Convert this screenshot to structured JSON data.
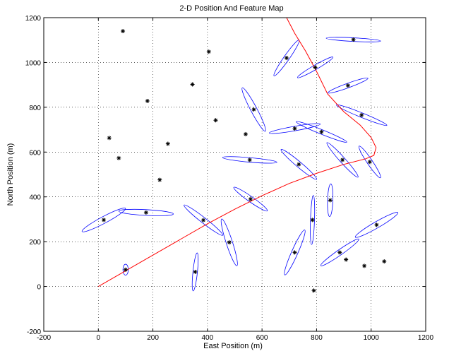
{
  "chart_data": {
    "type": "scatter",
    "title": "2-D Position And Feature Map",
    "xlabel": "East Position (m)",
    "ylabel": "North Position (m)",
    "xlim": [
      -200,
      1200
    ],
    "ylim": [
      -200,
      1200
    ],
    "xticks": [
      -200,
      0,
      200,
      400,
      600,
      800,
      1000,
      1200
    ],
    "yticks": [
      -200,
      0,
      200,
      400,
      600,
      800,
      1000,
      1200
    ],
    "xtick_labels": [
      "-200",
      "0",
      "200",
      "400",
      "600",
      "800",
      "1000",
      "1200"
    ],
    "ytick_labels": [
      "-200",
      "0",
      "200",
      "400",
      "600",
      "800",
      "1000",
      "1200"
    ],
    "grid": true,
    "colors": {
      "trajectory": "#ff0000",
      "ellipse": "#0000ff",
      "feature": "#000000",
      "axes": "#000000",
      "grid": "#000000"
    },
    "trajectory": [
      [
        0,
        0
      ],
      [
        100,
        70
      ],
      [
        200,
        140
      ],
      [
        300,
        210
      ],
      [
        400,
        280
      ],
      [
        500,
        345
      ],
      [
        600,
        405
      ],
      [
        700,
        460
      ],
      [
        800,
        505
      ],
      [
        900,
        545
      ],
      [
        980,
        570
      ],
      [
        1010,
        585
      ],
      [
        1018,
        620
      ],
      [
        1000,
        665
      ],
      [
        960,
        720
      ],
      [
        900,
        780
      ],
      [
        840,
        860
      ],
      [
        800,
        960
      ],
      [
        760,
        1050
      ],
      [
        720,
        1130
      ],
      [
        690,
        1200
      ]
    ],
    "features": [
      {
        "x": 90,
        "y": 1140
      },
      {
        "x": 405,
        "y": 1048
      },
      {
        "x": 345,
        "y": 902
      },
      {
        "x": 180,
        "y": 828
      },
      {
        "x": 430,
        "y": 742
      },
      {
        "x": 40,
        "y": 663
      },
      {
        "x": 540,
        "y": 680
      },
      {
        "x": 255,
        "y": 637
      },
      {
        "x": 75,
        "y": 573
      },
      {
        "x": 225,
        "y": 476
      },
      {
        "x": 908,
        "y": 120
      },
      {
        "x": 975,
        "y": 92
      },
      {
        "x": 1048,
        "y": 112
      },
      {
        "x": 790,
        "y": -18
      },
      {
        "x": 935,
        "y": 1102
      },
      {
        "x": 690,
        "y": 1020
      },
      {
        "x": 795,
        "y": 978
      },
      {
        "x": 915,
        "y": 897
      },
      {
        "x": 570,
        "y": 790
      },
      {
        "x": 965,
        "y": 765
      },
      {
        "x": 720,
        "y": 705
      },
      {
        "x": 818,
        "y": 690
      },
      {
        "x": 555,
        "y": 565
      },
      {
        "x": 735,
        "y": 545
      },
      {
        "x": 895,
        "y": 565
      },
      {
        "x": 995,
        "y": 556
      },
      {
        "x": 558,
        "y": 390
      },
      {
        "x": 850,
        "y": 385
      },
      {
        "x": 175,
        "y": 330
      },
      {
        "x": 20,
        "y": 297
      },
      {
        "x": 385,
        "y": 296
      },
      {
        "x": 785,
        "y": 297
      },
      {
        "x": 1020,
        "y": 275
      },
      {
        "x": 480,
        "y": 197
      },
      {
        "x": 885,
        "y": 152
      },
      {
        "x": 720,
        "y": 152
      },
      {
        "x": 100,
        "y": 75
      },
      {
        "x": 355,
        "y": 65
      }
    ],
    "ellipses": [
      {
        "cx": 935,
        "cy": 1102,
        "rx": 100,
        "ry": 8,
        "angle": -3
      },
      {
        "cx": 690,
        "cy": 1020,
        "rx": 80,
        "ry": 12,
        "angle": 55
      },
      {
        "cx": 795,
        "cy": 978,
        "rx": 75,
        "ry": 10,
        "angle": 30
      },
      {
        "cx": 915,
        "cy": 897,
        "rx": 78,
        "ry": 10,
        "angle": 20
      },
      {
        "cx": 570,
        "cy": 790,
        "rx": 90,
        "ry": 14,
        "angle": -62
      },
      {
        "cx": 965,
        "cy": 765,
        "rx": 100,
        "ry": 10,
        "angle": -22
      },
      {
        "cx": 720,
        "cy": 705,
        "rx": 95,
        "ry": 10,
        "angle": 10
      },
      {
        "cx": 818,
        "cy": 690,
        "rx": 100,
        "ry": 10,
        "angle": -22
      },
      {
        "cx": 555,
        "cy": 565,
        "rx": 100,
        "ry": 10,
        "angle": -5
      },
      {
        "cx": 735,
        "cy": 545,
        "rx": 85,
        "ry": 12,
        "angle": -40
      },
      {
        "cx": 895,
        "cy": 565,
        "rx": 85,
        "ry": 12,
        "angle": -48
      },
      {
        "cx": 995,
        "cy": 556,
        "rx": 70,
        "ry": 12,
        "angle": -56
      },
      {
        "cx": 558,
        "cy": 390,
        "rx": 75,
        "ry": 12,
        "angle": -35
      },
      {
        "cx": 850,
        "cy": 385,
        "rx": 60,
        "ry": 12,
        "angle": 88
      },
      {
        "cx": 175,
        "cy": 330,
        "rx": 100,
        "ry": 13,
        "angle": -3
      },
      {
        "cx": 20,
        "cy": 297,
        "rx": 90,
        "ry": 15,
        "angle": 28
      },
      {
        "cx": 385,
        "cy": 296,
        "rx": 90,
        "ry": 12,
        "angle": -38
      },
      {
        "cx": 785,
        "cy": 297,
        "rx": 90,
        "ry": 9,
        "angle": 88
      },
      {
        "cx": 1020,
        "cy": 275,
        "rx": 90,
        "ry": 14,
        "angle": 30
      },
      {
        "cx": 480,
        "cy": 197,
        "rx": 90,
        "ry": 14,
        "angle": -72
      },
      {
        "cx": 885,
        "cy": 152,
        "rx": 85,
        "ry": 12,
        "angle": 35
      },
      {
        "cx": 720,
        "cy": 152,
        "rx": 90,
        "ry": 14,
        "angle": 66
      },
      {
        "cx": 100,
        "cy": 75,
        "rx": 20,
        "ry": 12,
        "angle": 90
      },
      {
        "cx": 355,
        "cy": 65,
        "rx": 70,
        "ry": 10,
        "angle": 84
      }
    ]
  }
}
